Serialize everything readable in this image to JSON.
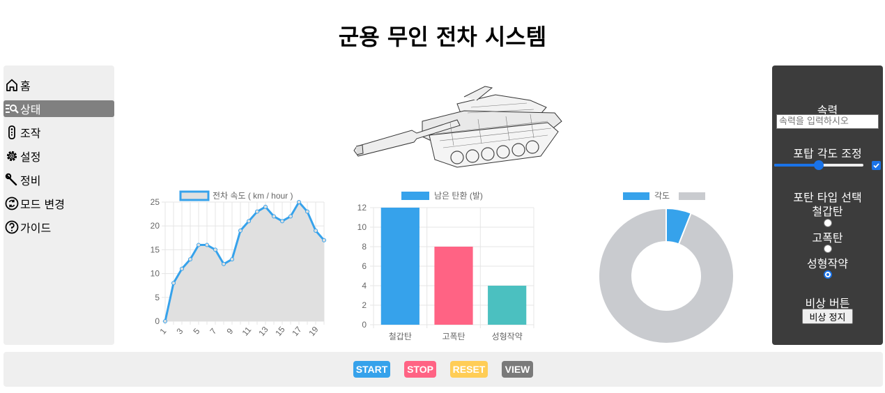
{
  "page_title": "군용 무인 전차 시스템",
  "sidebar": {
    "items": [
      {
        "label": "홈",
        "icon": "home-icon",
        "active": false
      },
      {
        "label": "상태",
        "icon": "status-search-icon",
        "active": true
      },
      {
        "label": "조작",
        "icon": "remote-control-icon",
        "active": false
      },
      {
        "label": "설정",
        "icon": "gear-icon",
        "active": false
      },
      {
        "label": "정비",
        "icon": "wrench-icon",
        "active": false
      },
      {
        "label": "모드 변경",
        "icon": "mode-change-icon",
        "active": false
      },
      {
        "label": "가이드",
        "icon": "question-icon",
        "active": false
      }
    ]
  },
  "control_panel": {
    "speed_label": "속력",
    "speed_placeholder": "속력을 입력하시오",
    "turret_angle_label": "포탑 각도 조정",
    "turret_angle_value": 0.5,
    "turret_angle_checked": true,
    "shell_type_label": "포탄 타입 선택",
    "shell_types": [
      {
        "label": "철갑탄",
        "checked": false
      },
      {
        "label": "고폭탄",
        "checked": false
      },
      {
        "label": "성형작약",
        "checked": true
      }
    ],
    "emergency_label": "비상 버튼",
    "emergency_stop_label": "비상 정지"
  },
  "bottom_bar": {
    "buttons": [
      {
        "label": "START",
        "color": "#36a2eb"
      },
      {
        "label": "STOP",
        "color": "#ff6384"
      },
      {
        "label": "RESET",
        "color": "#ffcd56"
      },
      {
        "label": "VIEW",
        "color": "#7a7a7a"
      }
    ]
  },
  "chart_data": [
    {
      "type": "line",
      "legend": "전차 속도 ( km / hour )",
      "x": [
        1,
        2,
        3,
        4,
        5,
        6,
        7,
        8,
        9,
        10,
        11,
        12,
        13,
        14,
        15,
        16,
        17,
        18,
        19,
        20
      ],
      "x_tick_labels": [
        "1",
        "3",
        "5",
        "7",
        "9",
        "11",
        "13",
        "15",
        "17",
        "19"
      ],
      "values": [
        0,
        8,
        11,
        13,
        16,
        16,
        15,
        12,
        13,
        19,
        21,
        23,
        24,
        22,
        21,
        22,
        25,
        23,
        19,
        17
      ],
      "ylim": [
        0,
        25
      ],
      "y_ticks": [
        0,
        5,
        10,
        15,
        20,
        25
      ],
      "color": "#36a2eb",
      "fill": "#e0e0e0",
      "grid": true
    },
    {
      "type": "bar",
      "legend": "남은 탄환 (발)",
      "categories": [
        "철갑탄",
        "고폭탄",
        "성형작약"
      ],
      "values": [
        12,
        8,
        4
      ],
      "colors": [
        "#36a2eb",
        "#ff6384",
        "#4bc0c0"
      ],
      "ylim": [
        0,
        12
      ],
      "y_ticks": [
        0,
        2,
        4,
        6,
        8,
        10,
        12
      ],
      "grid": true
    },
    {
      "type": "pie",
      "variant": "doughnut",
      "legend": "각도",
      "values": [
        6,
        94
      ],
      "colors": [
        "#36a2eb",
        "#c9cbcf"
      ]
    }
  ]
}
